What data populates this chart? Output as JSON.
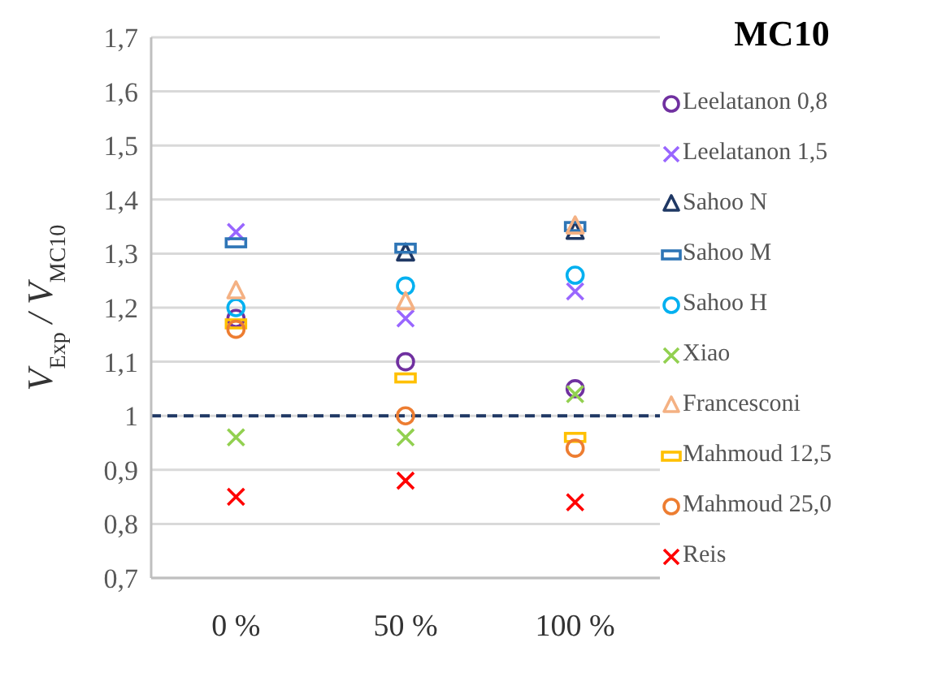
{
  "chart_data": {
    "type": "scatter",
    "ylabel": "V$_{Exp}$ / V$_{MC10}$",
    "legend_title": "MC10",
    "categories": [
      "0 %",
      "50 %",
      "100 %"
    ],
    "series": [
      {
        "name": "Leelatanon 0,8",
        "color": "#7030a0",
        "marker": "circle",
        "values": [
          1.18,
          1.1,
          1.05
        ]
      },
      {
        "name": "Leelatanon 1,5",
        "color": "#9966ff",
        "marker": "cross",
        "values": [
          1.34,
          1.18,
          1.23
        ]
      },
      {
        "name": "Sahoo N",
        "color": "#1f3864",
        "marker": "triangle",
        "values": [
          null,
          1.3,
          1.34
        ]
      },
      {
        "name": "Sahoo M",
        "color": "#2e75b6",
        "marker": "square",
        "values": [
          1.32,
          1.31,
          1.35
        ]
      },
      {
        "name": "Sahoo H",
        "color": "#00b0f0",
        "marker": "circle",
        "values": [
          1.2,
          1.24,
          1.26
        ]
      },
      {
        "name": "Xiao",
        "color": "#92d050",
        "marker": "cross",
        "values": [
          0.96,
          0.96,
          1.04
        ]
      },
      {
        "name": "Francesconi",
        "color": "#f4b183",
        "marker": "triangle",
        "values": [
          1.23,
          1.21,
          1.35
        ]
      },
      {
        "name": "Mahmoud 12,5",
        "color": "#ffc000",
        "marker": "square",
        "values": [
          1.17,
          1.07,
          0.96
        ]
      },
      {
        "name": "Mahmoud 25,0",
        "color": "#ed7d31",
        "marker": "circle",
        "values": [
          1.16,
          1.0,
          0.94
        ]
      },
      {
        "name": "Reis",
        "color": "#ff0000",
        "marker": "cross",
        "values": [
          0.85,
          0.88,
          0.84
        ]
      }
    ],
    "ylim": [
      0.7,
      1.7
    ],
    "yticks": [
      {
        "value": 0.7,
        "label": "0,7"
      },
      {
        "value": 0.8,
        "label": "0,8"
      },
      {
        "value": 0.9,
        "label": "0,9"
      },
      {
        "value": 1,
        "label": "1"
      },
      {
        "value": 1.1,
        "label": "1,1"
      },
      {
        "value": 1.2,
        "label": "1,2"
      },
      {
        "value": 1.3,
        "label": "1,3"
      },
      {
        "value": 1.4,
        "label": "1,4"
      },
      {
        "value": 1.5,
        "label": "1,5"
      },
      {
        "value": 1.6,
        "label": "1,6"
      },
      {
        "value": 1.7,
        "label": "1,7"
      }
    ],
    "ref_lines": [
      {
        "axis": "y",
        "value": 1,
        "color": "#1f3864",
        "line_style": "dashed"
      }
    ],
    "grid": "y",
    "legend": "right"
  }
}
